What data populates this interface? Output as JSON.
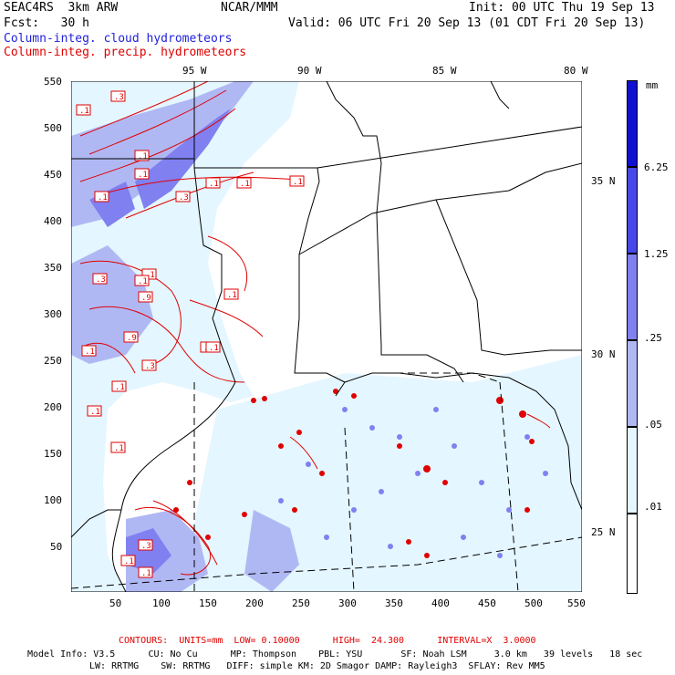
{
  "header": {
    "model": "SEAC4RS  3km ARW",
    "org": "NCAR/MMM",
    "init": "Init: 00 UTC Thu 19 Sep 13",
    "fcst": "Fcst:   30 h",
    "valid": "Valid: 06 UTC Fri 20 Sep 13 (01 CDT Fri 20 Sep 13)",
    "field_blue": "Column-integ. cloud hydrometeors",
    "field_red": "Column-integ. precip. hydrometeors"
  },
  "map": {
    "x_ticks": [
      "50",
      "100",
      "150",
      "200",
      "250",
      "300",
      "350",
      "400",
      "450",
      "500",
      "550"
    ],
    "y_ticks": [
      "550",
      "500",
      "450",
      "400",
      "350",
      "300",
      "250",
      "200",
      "150",
      "100",
      "50"
    ],
    "lon_labels": [
      "95 W",
      "90 W",
      "85 W",
      "80 W"
    ],
    "lat_labels": [
      "35 N",
      "30 N",
      "25 N"
    ],
    "contour_labels": [
      ".1",
      ".3",
      ".1",
      ".1",
      ".1",
      ".3",
      ".1",
      ".1",
      ".1",
      ".3",
      ".1",
      ".9",
      ".1",
      ".1",
      ".9",
      ".1",
      ".1",
      ".3",
      ".1",
      ".1",
      ".1",
      ".1",
      ".3",
      ".1",
      ".1"
    ]
  },
  "colorbar": {
    "units": "mm",
    "labels": [
      "6.25",
      "1.25",
      ".25",
      ".05",
      ".01"
    ],
    "colors": [
      "#1010d0",
      "#4848e8",
      "#8080f0",
      "#b0b8f4",
      "#e4f6ff",
      "#ffffff"
    ]
  },
  "footer": {
    "contours": "CONTOURS:  UNITS=mm  LOW= 0.10000      HIGH=  24.300      INTERVAL=X  3.0000",
    "info1": "Model Info: V3.5      CU: No Cu      MP: Thompson    PBL: YSU       SF: Noah LSM     3.0 km   39 levels   18 sec",
    "info2": "LW: RRTMG    SW: RRTMG   DIFF: simple KM: 2D Smagor DAMP: Rayleigh3  SFLAY: Rev MM5"
  }
}
